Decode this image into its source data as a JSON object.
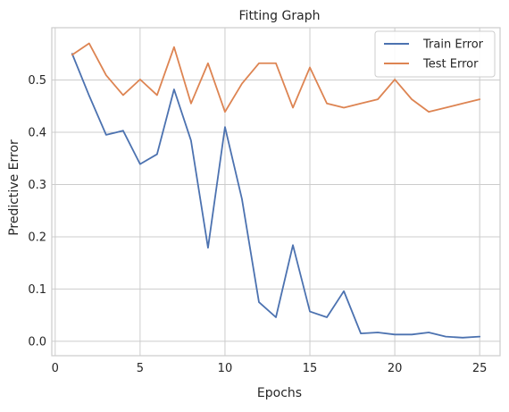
{
  "chart_data": {
    "type": "line",
    "title": "Fitting Graph",
    "xlabel": "Epochs",
    "ylabel": "Predictive Error",
    "xlim": [
      -0.2,
      26.2
    ],
    "ylim": [
      -0.0275,
      0.6
    ],
    "xticks": [
      0,
      5,
      10,
      15,
      20,
      25
    ],
    "yticks": [
      0.0,
      0.1,
      0.2,
      0.3,
      0.4,
      0.5
    ],
    "xtick_labels": [
      "0",
      "5",
      "10",
      "15",
      "20",
      "25"
    ],
    "ytick_labels": [
      "0.0",
      "0.1",
      "0.2",
      "0.3",
      "0.4",
      "0.5"
    ],
    "grid": true,
    "legend_position": "top-right",
    "x": [
      1,
      2,
      3,
      4,
      5,
      6,
      7,
      8,
      9,
      10,
      11,
      12,
      13,
      14,
      15,
      16,
      17,
      18,
      19,
      20,
      21,
      22,
      23,
      24,
      25
    ],
    "series": [
      {
        "name": "Train Error",
        "color": "#4c72b0",
        "values": [
          0.55,
          0.47,
          0.395,
          0.403,
          0.339,
          0.358,
          0.482,
          0.384,
          0.179,
          0.41,
          0.272,
          0.075,
          0.046,
          0.184,
          0.057,
          0.046,
          0.096,
          0.015,
          0.017,
          0.013,
          0.013,
          0.017,
          0.009,
          0.007,
          0.009
        ]
      },
      {
        "name": "Test Error",
        "color": "#dd8452",
        "values": [
          0.548,
          0.57,
          0.509,
          0.471,
          0.501,
          0.471,
          0.563,
          0.455,
          0.532,
          0.439,
          0.493,
          0.532,
          0.532,
          0.447,
          0.524,
          0.455,
          0.447,
          0.455,
          0.463,
          0.501,
          0.463,
          0.439,
          0.447,
          0.455,
          0.463
        ]
      }
    ]
  },
  "colors": {
    "grid": "#cccccc",
    "axes_border": "#cccccc",
    "text": "#262626",
    "background": "#ffffff"
  }
}
